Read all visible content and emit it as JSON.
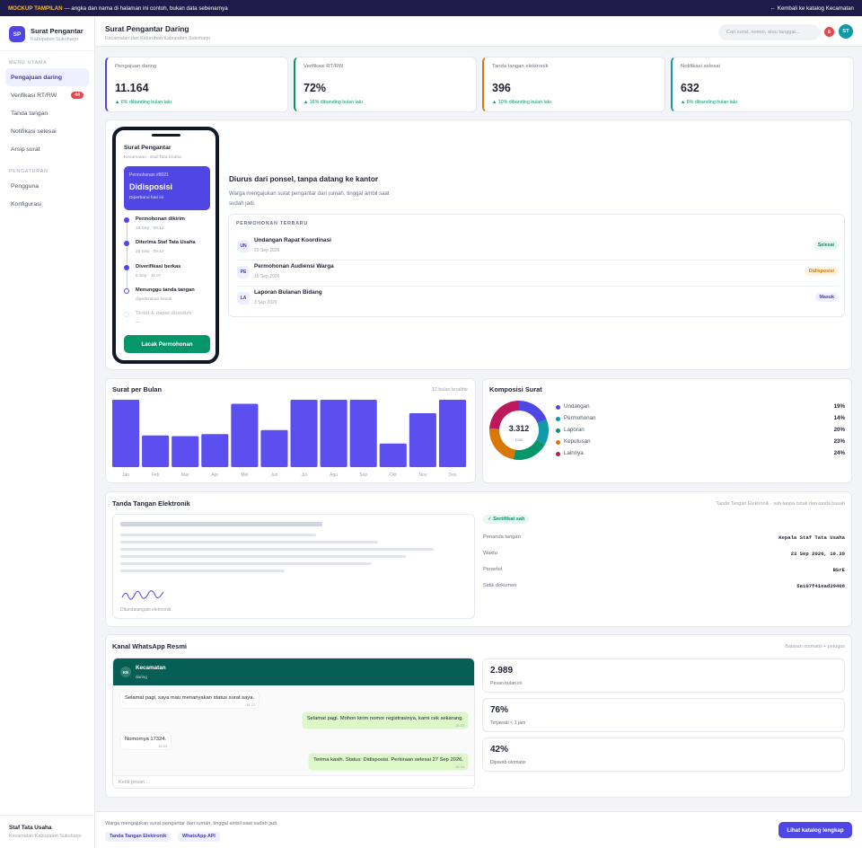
{
  "banner": {
    "tag": "MOCKUP TAMPILAN",
    "text": " — angka dan nama di halaman ini contoh, bukan data sebenarnya",
    "back_link": "← Kembali ke katalog Kecamatan"
  },
  "brand": {
    "initials": "SP",
    "title": "Surat Pengantar",
    "subtitle": "Kabupaten Sukoharjo"
  },
  "sidebar": {
    "section_main": "MENU UTAMA",
    "items": [
      {
        "label": "Pengajuan daring",
        "active": true
      },
      {
        "label": "Verifikasi RT/RW",
        "badge": "44"
      },
      {
        "label": "Tanda tangan"
      },
      {
        "label": "Notifikasi selesai"
      },
      {
        "label": "Arsip surat"
      }
    ],
    "section_settings": "PENGATURAN",
    "settings": [
      {
        "label": "Pengguna"
      },
      {
        "label": "Konfigurasi"
      }
    ],
    "user": {
      "name": "Staf Tata Usaha",
      "unit": "Kecamatan Kabupaten Sukoharjo"
    }
  },
  "header": {
    "title": "Surat Pengantar Daring",
    "subtitle": "Kecamatan dan Kelurahan Kabupaten Sukoharjo",
    "search_placeholder": "Cari surat, nomor, atau tanggal...",
    "notif_count": "8",
    "avatar": "ST"
  },
  "kpis": [
    {
      "label": "Pengajuan daring",
      "value": "11.164",
      "change": "▲ 6% dibanding bulan lalu",
      "color": "#4f46e5"
    },
    {
      "label": "Verifikasi RT/RW",
      "value": "72%",
      "change": "▲ 16% dibanding bulan lalu",
      "color": "#059669"
    },
    {
      "label": "Tanda tangan elektronik",
      "value": "396",
      "change": "▲ 10% dibanding bulan lalu",
      "color": "#d97706"
    },
    {
      "label": "Notifikasi selesai",
      "value": "632",
      "change": "▲ 8% dibanding bulan lalu",
      "color": "#0e9aa7"
    }
  ],
  "phone": {
    "title": "Surat Pengantar",
    "subtitle": "Kecamatan · Staf Tata Usaha",
    "card_no": "Permohonan #8021",
    "card_status": "Didisposisi",
    "card_update": "Diperbarui hari ini",
    "timeline": [
      {
        "title": "Permohonan dikirim",
        "meta": "18 Sep · 09.12",
        "state": "done"
      },
      {
        "title": "Diterima Staf Tata Usaha",
        "meta": "20 Sep · 09.12",
        "state": "done"
      },
      {
        "title": "Diverifikasi berkas",
        "meta": "8 Sep · 11.07",
        "state": "done"
      },
      {
        "title": "Menunggu tanda tangan",
        "meta": "diperkirakan besok",
        "state": "current"
      },
      {
        "title": "Terbit & dapat diunduh",
        "meta": "—",
        "state": "pending"
      }
    ],
    "button": "Lacak Permohonan"
  },
  "hero": {
    "title": "Diurus dari ponsel, tanpa datang ke kantor",
    "text": "Warga mengajukan surat pengantar dari rumah, tinggal ambil saat sudah jadi."
  },
  "recent": {
    "title": "PERMOHONAN TERBARU",
    "rows": [
      {
        "initials": "UN",
        "title": "Undangan Rapat Koordinasi",
        "date": "20 Sep 2026",
        "status": "Selesai",
        "status_bg": "#e7f6ee",
        "status_fg": "#059669"
      },
      {
        "initials": "PE",
        "title": "Permohonan Audiensi Warga",
        "date": "15 Sep 2026",
        "status": "Didisposisi",
        "status_bg": "#fdf1e2",
        "status_fg": "#d97706"
      },
      {
        "initials": "LA",
        "title": "Laporan Bulanan Bidang",
        "date": "3 Sep 2026",
        "status": "Masuk",
        "status_bg": "#eef0ff",
        "status_fg": "#4338ca"
      }
    ]
  },
  "monthly": {
    "title": "Surat per Bulan",
    "note": "12 bulan terakhir"
  },
  "composition": {
    "title": "Komposisi Surat"
  },
  "chart_data": [
    {
      "type": "bar",
      "title": "Surat per Bulan",
      "categories": [
        "Jan",
        "Feb",
        "Mar",
        "Apr",
        "Mei",
        "Jun",
        "Jul",
        "Agu",
        "Sep",
        "Okt",
        "Nov",
        "Des"
      ],
      "values": [
        100,
        47,
        46,
        49,
        94,
        55,
        100,
        100,
        100,
        35,
        80,
        100
      ],
      "ylim": [
        0,
        100
      ],
      "color": "#5b4ff0"
    },
    {
      "type": "pie",
      "title": "Komposisi Surat",
      "center_value": "3.312",
      "center_label": "total",
      "slices": [
        {
          "label": "Undangan",
          "value": 19,
          "display": "19%",
          "color": "#4f46e5"
        },
        {
          "label": "Permohonan",
          "value": 14,
          "display": "14%",
          "color": "#0e9aa7"
        },
        {
          "label": "Laporan",
          "value": 20,
          "display": "20%",
          "color": "#059669"
        },
        {
          "label": "Keputusan",
          "value": 23,
          "display": "23%",
          "color": "#d97706"
        },
        {
          "label": "Lainnya",
          "value": 24,
          "display": "24%",
          "color": "#be185d"
        }
      ]
    }
  ],
  "esign": {
    "title": "Tanda Tangan Elektronik",
    "note": "Tanda Tangan Elektronik - sah tanpa cetak dan tanda basah",
    "caption": "Ditandatangani elektronik",
    "cert": "✓ Sertifikat sah",
    "fields": [
      {
        "key": "Penanda tangan",
        "value": "Kepala Staf Tata Usaha"
      },
      {
        "key": "Waktu",
        "value": "23 Sep 2026, 10.39"
      },
      {
        "key": "Penerbit",
        "value": "BSrE"
      },
      {
        "key": "Sidik dokumen",
        "value": "5a107f41ead39408"
      }
    ]
  },
  "whatsapp": {
    "title": "Kanal WhatsApp Resmi",
    "note": "Balasan otomatis + petugas",
    "contact": "Kecamatan",
    "contact_initials": "KE",
    "contact_status": "daring",
    "messages": [
      {
        "dir": "in",
        "text": "Selamat pagi, saya mau menanyakan status surat saya.",
        "time": "14.21"
      },
      {
        "dir": "out",
        "text": "Selamat pagi. Mohon kirim nomor registrasinya, kami cek sekarang.",
        "time": "15.22"
      },
      {
        "dir": "in",
        "text": "Nomornya 17324.",
        "time": "15.03"
      },
      {
        "dir": "out",
        "text": "Terima kasih. Status: Didisposisi. Perkiraan selesai 27 Sep 2026.",
        "time": "15.24"
      }
    ],
    "input_placeholder": "Ketik pesan...",
    "stats": [
      {
        "value": "2.989",
        "label": "Pesan bulan ini"
      },
      {
        "value": "76%",
        "label": "Terjawab < 1 jam"
      },
      {
        "value": "42%",
        "label": "Dijawab otomatis"
      }
    ]
  },
  "footer": {
    "text": "Warga mengajukan surat pengantar dari rumah, tinggal ambil saat sudah jadi.",
    "chips": [
      "Tanda Tangan Elektronik",
      "WhatsApp API"
    ],
    "cta": "Lihat katalog lengkap"
  }
}
